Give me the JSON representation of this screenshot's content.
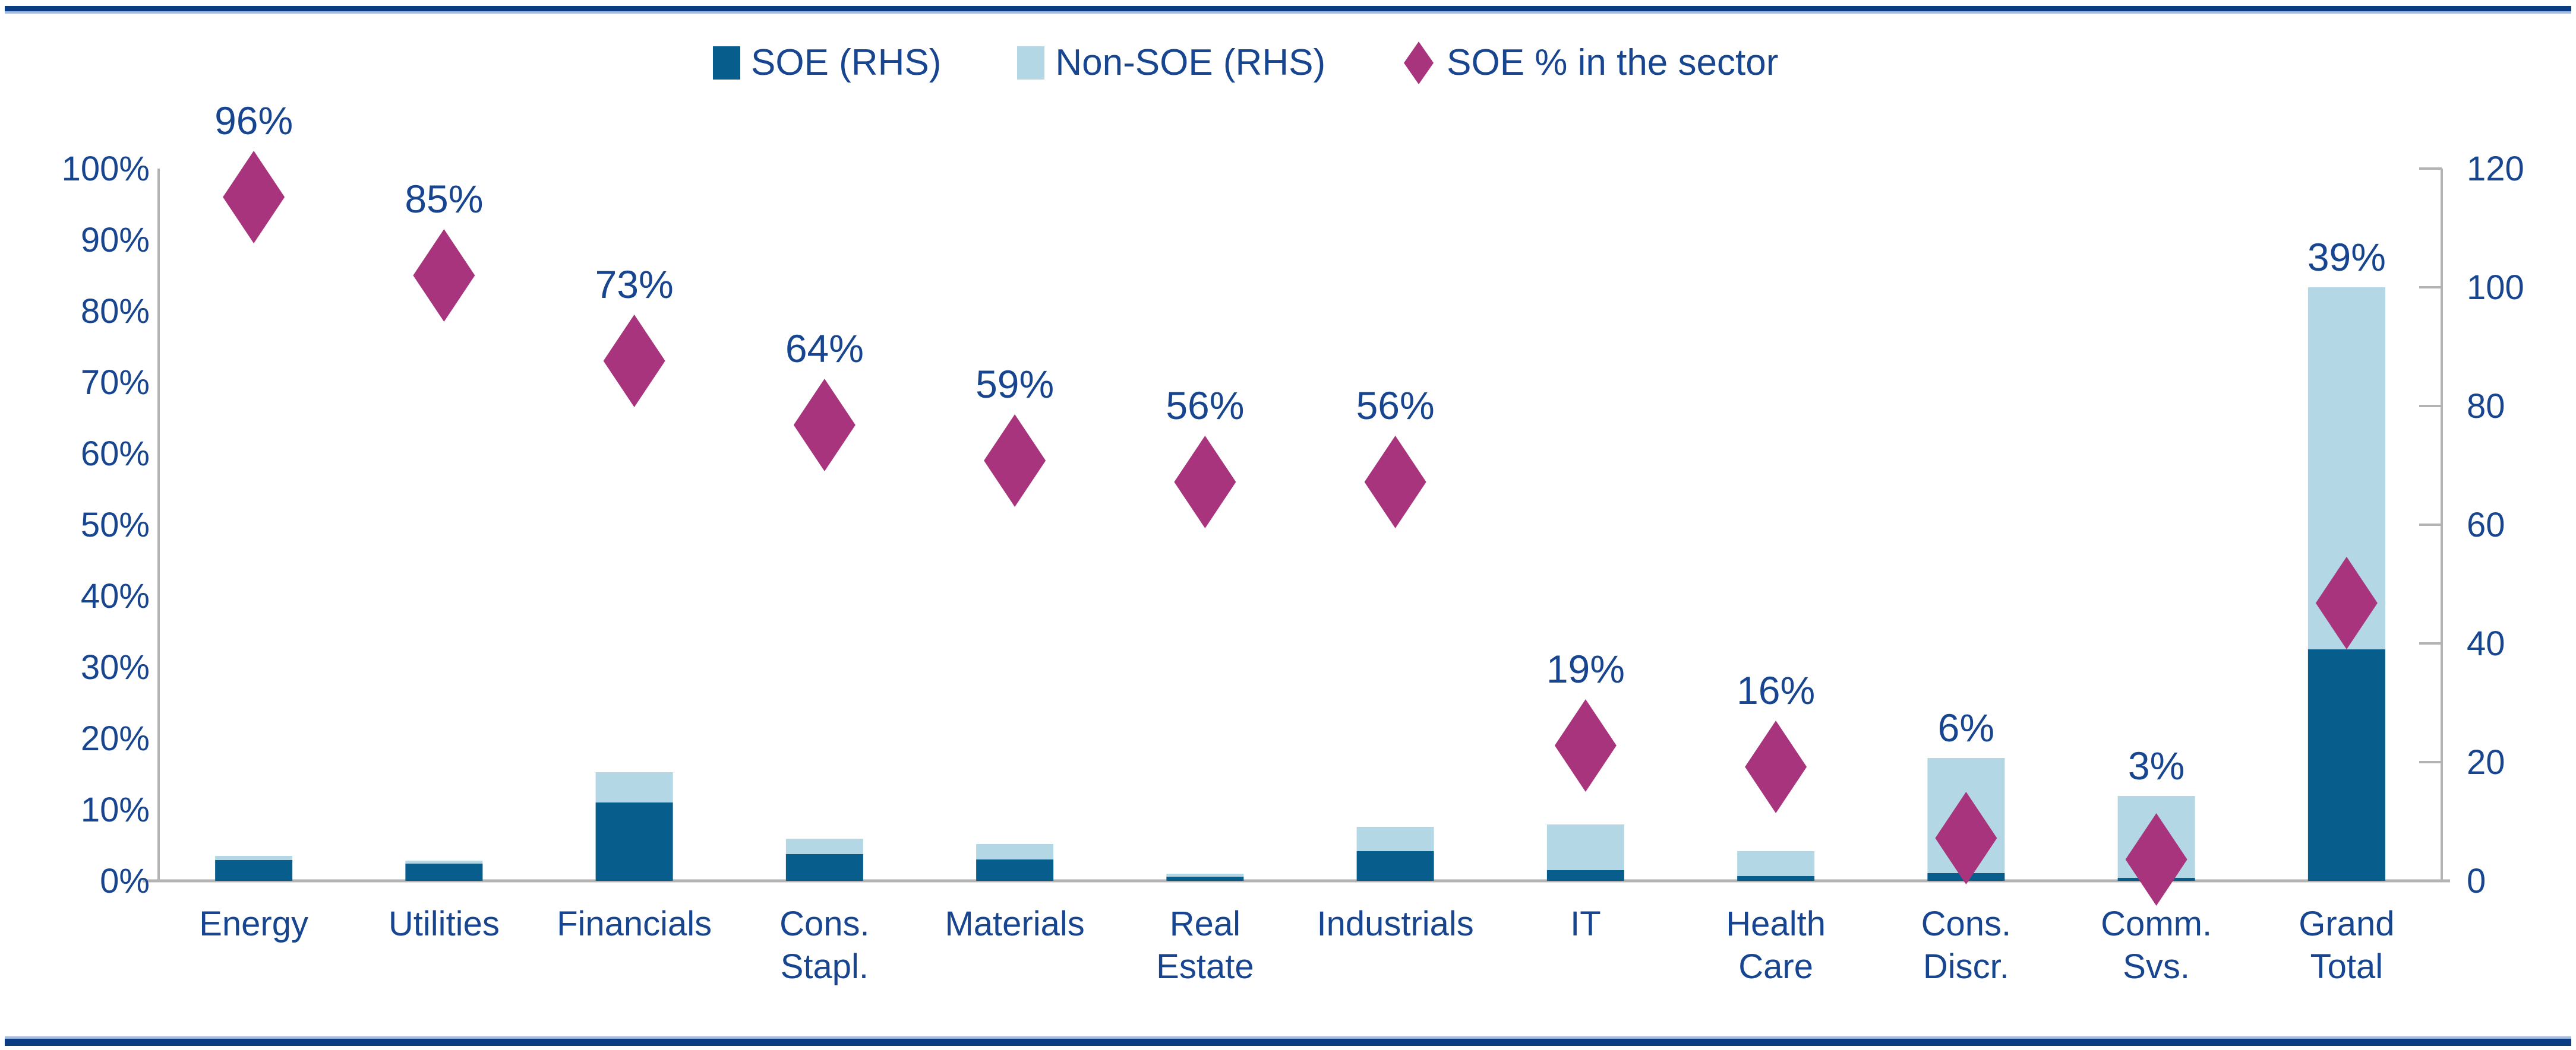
{
  "legend": {
    "items": [
      {
        "label": "SOE (RHS)",
        "marker": "square",
        "color": "#075E8C"
      },
      {
        "label": "Non-SOE (RHS)",
        "marker": "square",
        "color": "#B3D7E4"
      },
      {
        "label": "SOE % in the sector",
        "marker": "diamond",
        "color": "#A8347D"
      }
    ],
    "position": "top"
  },
  "colors": {
    "soe_bar": "#075E8C",
    "non_soe_bar": "#B3D7E4",
    "diamond": "#A8347D",
    "text": "#17458F",
    "axis": "#B3B3B3",
    "border_navy": "#0B3B80",
    "border_light": "#A9BCDC",
    "background": "#FFFFFF"
  },
  "chart_data": {
    "type": "bar",
    "subtype": "stacked-bars-with-diamond-scatter-overlay",
    "title": "",
    "xlabel": "",
    "ylabel_left": "",
    "ylabel_right": "",
    "categories": [
      "Energy",
      "Utilities",
      "Financials",
      "Cons. Stapl.",
      "Materials",
      "Real Estate",
      "Industrials",
      "IT",
      "Health Care",
      "Cons. Discr.",
      "Comm. Svs.",
      "Grand Total"
    ],
    "category_lines": [
      [
        "Energy"
      ],
      [
        "Utilities"
      ],
      [
        "Financials"
      ],
      [
        "Cons.",
        "Stapl."
      ],
      [
        "Materials"
      ],
      [
        "Real",
        "Estate"
      ],
      [
        "Industrials"
      ],
      [
        "IT"
      ],
      [
        "Health",
        "Care"
      ],
      [
        "Cons.",
        "Discr."
      ],
      [
        "Comm.",
        "Svs."
      ],
      [
        "Grand",
        "Total"
      ]
    ],
    "series": [
      {
        "name": "SOE (RHS)",
        "type": "bar-stack-bottom",
        "axis": "right",
        "values": [
          3.5,
          2.9,
          13.2,
          4.5,
          3.6,
          0.7,
          5.0,
          1.8,
          0.8,
          1.3,
          0.5,
          39
        ]
      },
      {
        "name": "Non-SOE (RHS)",
        "type": "bar-stack-top",
        "axis": "right",
        "values": [
          0.7,
          0.5,
          5.1,
          2.6,
          2.6,
          0.5,
          4.1,
          7.7,
          4.2,
          19.4,
          13.8,
          61
        ]
      },
      {
        "name": "SOE % in the sector",
        "type": "scatter-diamond",
        "axis": "left",
        "values": [
          96,
          85,
          73,
          64,
          59,
          56,
          56,
          19,
          16,
          6,
          3,
          39
        ],
        "labels": [
          "96%",
          "85%",
          "73%",
          "64%",
          "59%",
          "56%",
          "56%",
          "19%",
          "16%",
          "6%",
          "3%",
          "39%"
        ]
      }
    ],
    "left_axis": {
      "min": 0,
      "max": 100,
      "tick_step": 10,
      "ticks": [
        "0%",
        "10%",
        "20%",
        "30%",
        "40%",
        "50%",
        "60%",
        "70%",
        "80%",
        "90%",
        "100%"
      ]
    },
    "right_axis": {
      "min": 0,
      "max": 120,
      "tick_step": 20,
      "ticks": [
        "0",
        "20",
        "40",
        "60",
        "80",
        "100",
        "120"
      ]
    },
    "grid": false,
    "legend_position": "top"
  }
}
